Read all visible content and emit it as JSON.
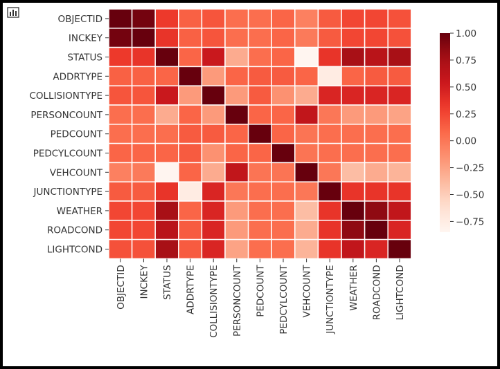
{
  "window": {
    "icon": "bar-chart-icon"
  },
  "chart_data": {
    "type": "heatmap",
    "title": "",
    "xlabel": "",
    "ylabel": "",
    "colormap": "Reds",
    "colorbar": {
      "vmin": -0.85,
      "vmax": 1.0,
      "ticks": [
        "1.00",
        "0.75",
        "0.50",
        "0.25",
        "0.00",
        "−0.25",
        "−0.50",
        "−0.75"
      ],
      "tick_values": [
        1.0,
        0.75,
        0.5,
        0.25,
        0.0,
        -0.25,
        -0.5,
        -0.75
      ]
    },
    "x_labels": [
      "OBJECTID",
      "INCKEY",
      "STATUS",
      "ADDRTYPE",
      "COLLISIONTYPE",
      "PERSONCOUNT",
      "PEDCOUNT",
      "PEDCYLCOUNT",
      "VEHCOUNT",
      "JUNCTIONTYPE",
      "WEATHER",
      "ROADCOND",
      "LIGHTCOND"
    ],
    "y_labels": [
      "OBJECTID",
      "INCKEY",
      "STATUS",
      "ADDRTYPE",
      "COLLISIONTYPE",
      "PERSONCOUNT",
      "PEDCOUNT",
      "PEDCYLCOUNT",
      "VEHCOUNT",
      "JUNCTIONTYPE",
      "WEATHER",
      "ROADCOND",
      "LIGHTCOND"
    ],
    "matrix": [
      [
        1.0,
        0.95,
        0.32,
        0.12,
        0.18,
        0.05,
        0.05,
        0.1,
        -0.05,
        0.15,
        0.25,
        0.25,
        0.2
      ],
      [
        0.95,
        1.0,
        0.35,
        0.12,
        0.18,
        0.05,
        0.05,
        0.1,
        -0.02,
        0.15,
        0.25,
        0.25,
        0.2
      ],
      [
        0.32,
        0.35,
        1.0,
        0.1,
        0.55,
        -0.3,
        0.05,
        0.1,
        -0.85,
        0.35,
        0.75,
        0.65,
        0.75
      ],
      [
        0.12,
        0.12,
        0.1,
        1.0,
        -0.2,
        0.1,
        0.15,
        0.15,
        0.1,
        -0.75,
        0.1,
        0.15,
        0.15
      ],
      [
        0.18,
        0.18,
        0.55,
        -0.2,
        1.0,
        -0.2,
        0.15,
        -0.15,
        -0.3,
        0.45,
        0.45,
        0.45,
        0.45
      ],
      [
        0.05,
        0.05,
        -0.3,
        0.1,
        -0.2,
        1.0,
        0.1,
        0.1,
        0.6,
        0.0,
        -0.2,
        -0.2,
        -0.25
      ],
      [
        0.05,
        0.05,
        0.05,
        0.15,
        0.15,
        0.1,
        1.0,
        0.1,
        0.02,
        0.05,
        0.05,
        0.05,
        0.05
      ],
      [
        0.1,
        0.1,
        0.1,
        0.15,
        -0.15,
        0.1,
        0.1,
        1.0,
        0.02,
        0.05,
        0.05,
        0.05,
        0.05
      ],
      [
        -0.05,
        -0.02,
        -0.85,
        0.1,
        -0.3,
        0.6,
        0.02,
        0.02,
        1.0,
        0.0,
        -0.4,
        -0.3,
        -0.35
      ],
      [
        0.15,
        0.15,
        0.35,
        -0.75,
        0.45,
        0.0,
        0.05,
        0.05,
        0.0,
        1.0,
        0.35,
        0.35,
        0.35
      ],
      [
        0.25,
        0.25,
        0.75,
        0.1,
        0.45,
        -0.2,
        0.05,
        0.05,
        -0.4,
        0.35,
        1.0,
        0.85,
        0.6
      ],
      [
        0.25,
        0.25,
        0.65,
        0.15,
        0.45,
        -0.2,
        0.05,
        0.05,
        -0.3,
        0.35,
        0.85,
        1.0,
        0.45
      ],
      [
        0.2,
        0.2,
        0.75,
        0.15,
        0.45,
        -0.25,
        0.05,
        0.05,
        -0.35,
        0.35,
        0.6,
        0.45,
        1.0
      ]
    ]
  }
}
